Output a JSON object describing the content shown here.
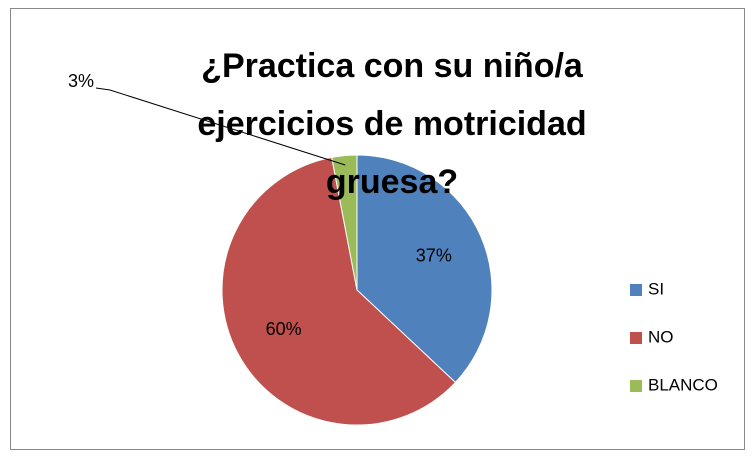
{
  "chart_data": {
    "type": "pie",
    "title": [
      "¿Practica con su niño/a",
      "ejercicios de motricidad",
      "gruesa?"
    ],
    "categories": [
      "SI",
      "NO",
      "BLANCO"
    ],
    "values": [
      37,
      60,
      3
    ],
    "value_labels": [
      "37%",
      "60%",
      "3%"
    ],
    "colors": [
      "#4f81bd",
      "#c0504d",
      "#9bbb59"
    ],
    "legend": "right"
  }
}
